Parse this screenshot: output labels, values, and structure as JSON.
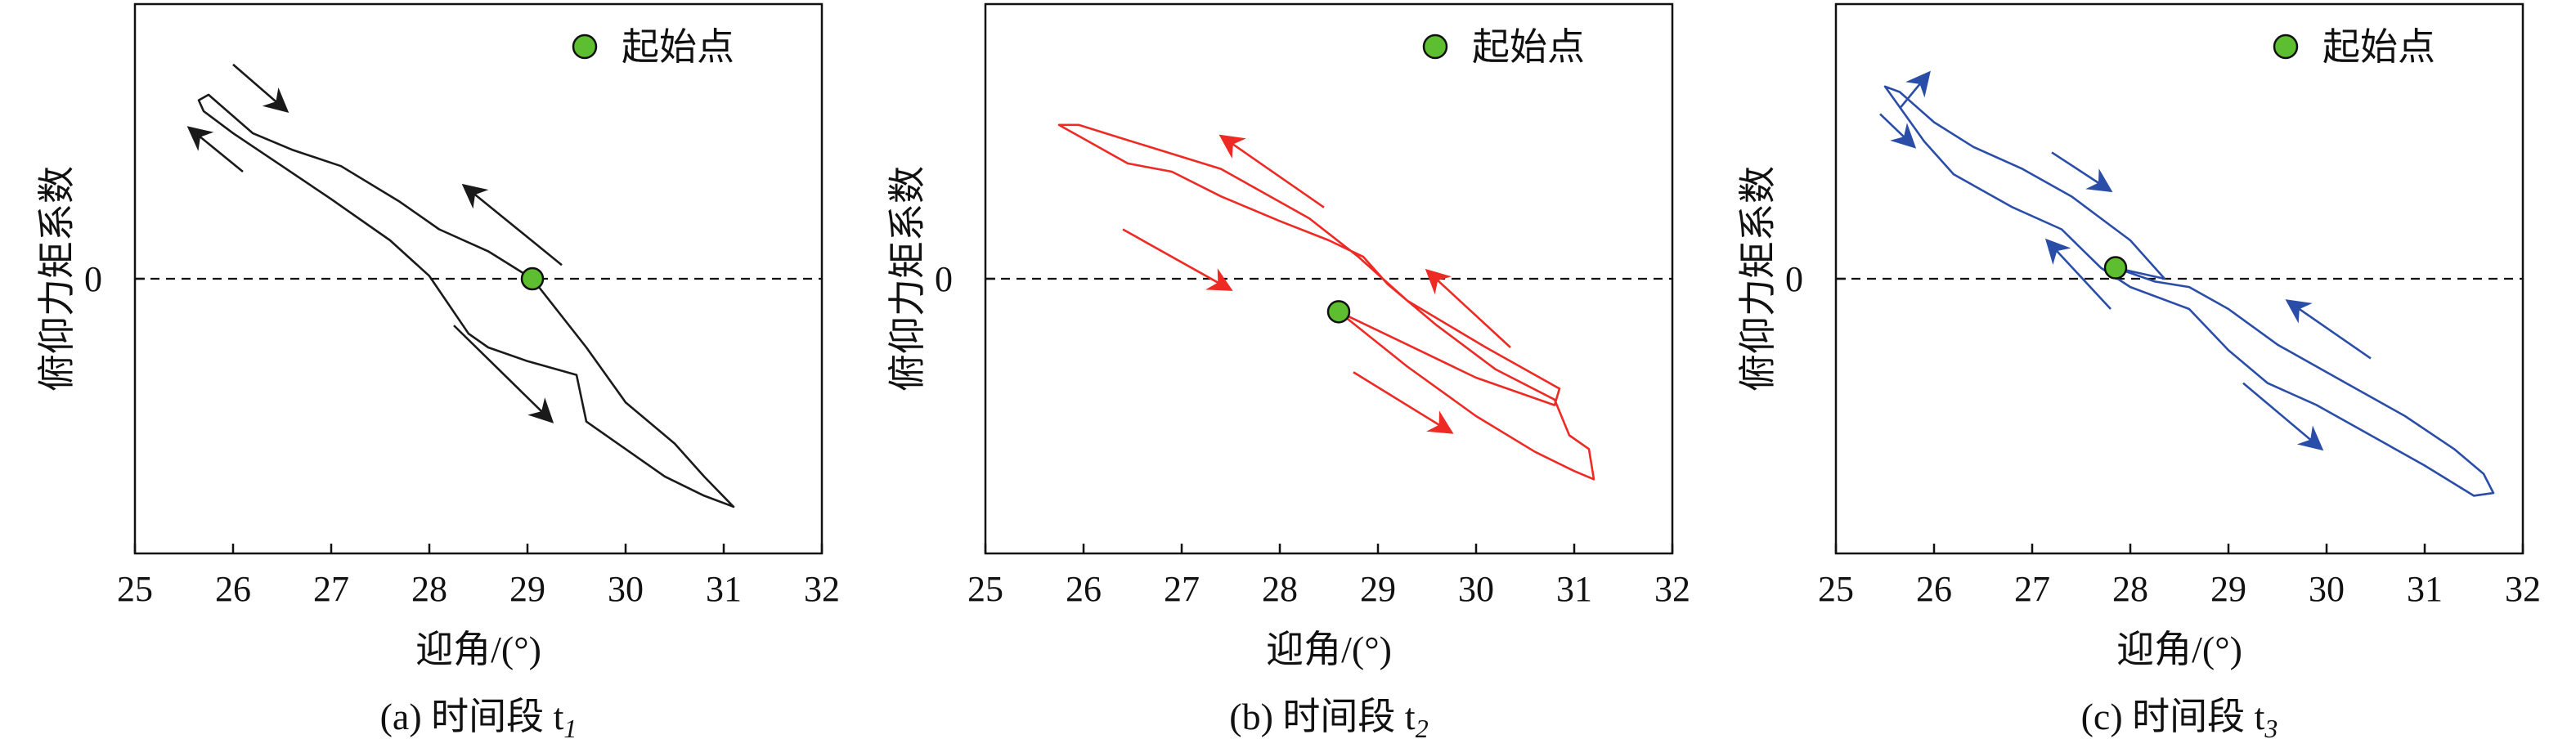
{
  "chart_data": [
    {
      "type": "line",
      "panel": "a",
      "caption": "(a) 时间段 t",
      "caption_sub": "1",
      "xlabel": "迎角/(°)",
      "ylabel": "俯仰力矩系数",
      "xlim": [
        25,
        32
      ],
      "ylim": [
        -1.0,
        1.0
      ],
      "xticks": [
        25,
        26,
        27,
        28,
        29,
        30,
        31,
        32
      ],
      "xtick_labels": [
        "25",
        "26",
        "27",
        "28",
        "29",
        "30",
        "31",
        "32"
      ],
      "yticks": [
        0
      ],
      "ytick_labels": [
        "0"
      ],
      "zero_line": "dashed",
      "legend": {
        "label": "起始点",
        "position": "top-right",
        "marker_color": "#5dbf2f"
      },
      "line_color": "#1a1a1a",
      "series": [
        {
          "x": [
            29.05,
            29.6,
            30.0,
            30.5,
            30.8,
            31.1,
            30.8,
            30.4,
            30.0,
            29.6,
            29.5,
            29.0,
            28.6,
            28.4,
            28.0,
            27.6,
            27.0,
            26.5,
            26.0,
            25.7,
            25.65,
            25.75,
            26.2,
            26.6,
            27.1,
            27.7,
            28.1,
            28.6,
            29.05
          ],
          "y": [
            0.0,
            -0.25,
            -0.45,
            -0.6,
            -0.72,
            -0.83,
            -0.79,
            -0.72,
            -0.62,
            -0.52,
            -0.35,
            -0.3,
            -0.25,
            -0.2,
            0.01,
            0.14,
            0.29,
            0.41,
            0.53,
            0.61,
            0.65,
            0.67,
            0.53,
            0.47,
            0.41,
            0.28,
            0.18,
            0.1,
            0.0
          ]
        }
      ],
      "start_point": {
        "x": 29.05,
        "y": 0.0
      },
      "arrows": [
        {
          "from": [
            26.0,
            0.78
          ],
          "to": [
            26.55,
            0.61
          ]
        },
        {
          "from": [
            26.1,
            0.39
          ],
          "to": [
            25.55,
            0.55
          ]
        },
        {
          "from": [
            29.35,
            0.05
          ],
          "to": [
            28.35,
            0.34
          ]
        },
        {
          "from": [
            28.25,
            -0.17
          ],
          "to": [
            29.25,
            -0.52
          ]
        }
      ]
    },
    {
      "type": "line",
      "panel": "b",
      "caption": "(b) 时间段 t",
      "caption_sub": "2",
      "xlabel": "迎角/(°)",
      "ylabel": "俯仰力矩系数",
      "xlim": [
        25,
        32
      ],
      "ylim": [
        -1.0,
        1.0
      ],
      "xticks": [
        25,
        26,
        27,
        28,
        29,
        30,
        31,
        32
      ],
      "xtick_labels": [
        "25",
        "26",
        "27",
        "28",
        "29",
        "30",
        "31",
        "32"
      ],
      "yticks": [
        0
      ],
      "ytick_labels": [
        "0"
      ],
      "zero_line": "dashed",
      "legend": {
        "label": "起始点",
        "position": "top-right",
        "marker_color": "#5dbf2f"
      },
      "line_color": "#ee2a24",
      "series": [
        {
          "x": [
            28.6,
            29.3,
            30.0,
            30.6,
            31.0,
            31.2,
            31.15,
            30.95,
            30.8,
            30.2,
            29.6,
            29.1,
            28.85,
            28.5,
            28.0,
            27.4,
            26.9,
            26.45,
            26.0,
            25.8,
            25.75,
            25.95,
            26.4,
            27.4,
            28.3,
            28.8,
            29.3,
            30.1,
            30.85,
            30.8,
            30.0,
            29.3,
            28.6
          ],
          "y": [
            -0.12,
            -0.32,
            -0.5,
            -0.63,
            -0.7,
            -0.73,
            -0.62,
            -0.57,
            -0.44,
            -0.33,
            -0.17,
            -0.02,
            0.08,
            0.14,
            0.21,
            0.3,
            0.39,
            0.42,
            0.51,
            0.55,
            0.56,
            0.56,
            0.51,
            0.4,
            0.22,
            0.08,
            -0.08,
            -0.25,
            -0.4,
            -0.46,
            -0.36,
            -0.24,
            -0.12
          ]
        }
      ],
      "start_point": {
        "x": 28.6,
        "y": -0.12
      },
      "arrows": [
        {
          "from": [
            28.45,
            0.26
          ],
          "to": [
            27.4,
            0.52
          ]
        },
        {
          "from": [
            26.4,
            0.18
          ],
          "to": [
            27.5,
            -0.04
          ]
        },
        {
          "from": [
            30.35,
            -0.25
          ],
          "to": [
            29.5,
            0.03
          ]
        },
        {
          "from": [
            28.75,
            -0.34
          ],
          "to": [
            29.75,
            -0.56
          ]
        }
      ]
    },
    {
      "type": "line",
      "panel": "c",
      "caption": "(c) 时间段 t",
      "caption_sub": "3",
      "xlabel": "迎角/(°)",
      "ylabel": "俯仰力矩系数",
      "xlim": [
        25,
        32
      ],
      "ylim": [
        -1.0,
        1.0
      ],
      "xticks": [
        25,
        26,
        27,
        28,
        29,
        30,
        31,
        32
      ],
      "xtick_labels": [
        "25",
        "26",
        "27",
        "28",
        "29",
        "30",
        "31",
        "32"
      ],
      "yticks": [
        0
      ],
      "ytick_labels": [
        "0"
      ],
      "zero_line": "dashed",
      "legend": {
        "label": "起始点",
        "position": "top-right",
        "marker_color": "#5dbf2f"
      },
      "line_color": "#2a4ea8",
      "series": [
        {
          "x": [
            27.85,
            28.25,
            28.6,
            29.0,
            29.5,
            30.2,
            30.8,
            31.3,
            31.6,
            31.7,
            31.5,
            31.0,
            30.5,
            29.9,
            29.4,
            29.0,
            28.6,
            28.0,
            27.7,
            27.3,
            26.8,
            26.2,
            25.9,
            25.6,
            25.5,
            25.65,
            26.0,
            26.4,
            26.9,
            27.4,
            28.0,
            28.35,
            27.85
          ],
          "y": [
            0.04,
            -0.01,
            -0.03,
            -0.11,
            -0.24,
            -0.38,
            -0.5,
            -0.62,
            -0.71,
            -0.78,
            -0.79,
            -0.68,
            -0.58,
            -0.46,
            -0.38,
            -0.26,
            -0.11,
            -0.03,
            0.04,
            0.18,
            0.26,
            0.38,
            0.5,
            0.65,
            0.7,
            0.68,
            0.57,
            0.48,
            0.4,
            0.3,
            0.14,
            0.0,
            0.04
          ]
        }
      ],
      "start_point": {
        "x": 27.85,
        "y": 0.04
      },
      "arrows": [
        {
          "from": [
            25.65,
            0.62
          ],
          "to": [
            25.95,
            0.75
          ]
        },
        {
          "from": [
            25.45,
            0.6
          ],
          "to": [
            25.8,
            0.48
          ]
        },
        {
          "from": [
            27.2,
            0.46
          ],
          "to": [
            27.8,
            0.32
          ]
        },
        {
          "from": [
            27.8,
            -0.11
          ],
          "to": [
            27.15,
            0.14
          ]
        },
        {
          "from": [
            30.45,
            -0.29
          ],
          "to": [
            29.6,
            -0.08
          ]
        },
        {
          "from": [
            29.15,
            -0.38
          ],
          "to": [
            29.95,
            -0.62
          ]
        }
      ]
    }
  ]
}
